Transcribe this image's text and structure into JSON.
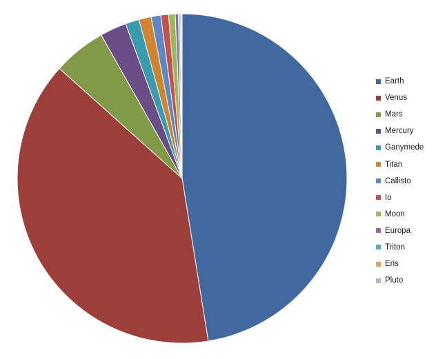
{
  "chart_data": {
    "type": "pie",
    "title": "",
    "legend_position": "right",
    "start_angle_deg": 0,
    "direction": "clockwise",
    "series": [
      {
        "name": "Earth",
        "value": 47.5,
        "color": "#4169A0"
      },
      {
        "name": "Venus",
        "value": 39.2,
        "color": "#9C3F3B"
      },
      {
        "name": "Mars",
        "value": 5.2,
        "color": "#809A48"
      },
      {
        "name": "Mercury",
        "value": 2.6,
        "color": "#6A4C86"
      },
      {
        "name": "Ganymede",
        "value": 1.35,
        "color": "#3A9AAE"
      },
      {
        "name": "Titan",
        "value": 1.2,
        "color": "#D08430"
      },
      {
        "name": "Callisto",
        "value": 0.95,
        "color": "#5D88C6"
      },
      {
        "name": "Io",
        "value": 0.75,
        "color": "#C8504B"
      },
      {
        "name": "Moon",
        "value": 0.65,
        "color": "#9BBA55"
      },
      {
        "name": "Europa",
        "value": 0.3,
        "color": "#8B6BAE"
      },
      {
        "name": "Triton",
        "value": 0.16,
        "color": "#45B5CC"
      },
      {
        "name": "Eris",
        "value": 0.12,
        "color": "#F0A040"
      },
      {
        "name": "Pluto",
        "value": 0.09,
        "color": "#A9B8DA"
      }
    ]
  }
}
